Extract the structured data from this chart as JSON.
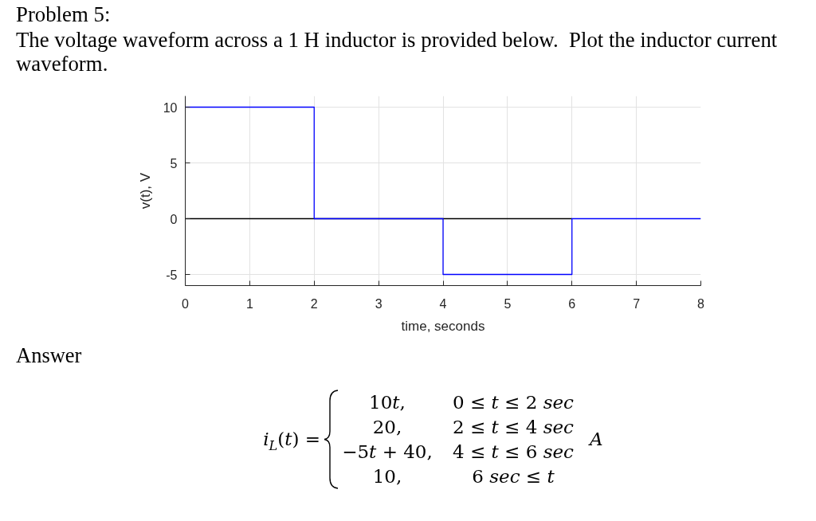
{
  "chart_data": {
    "type": "step",
    "title": "Problem 5:",
    "subtitle": "The voltage waveform across a 1 H inductor is provided below.  Plot the inductor current waveform.",
    "xlabel": "time, seconds",
    "ylabel": "v(t), V",
    "annotations": [
      "Answer",
      "i$_{L}$(t) =",
      "10t,",
      "0 ≤ t ≤ 2 sec",
      "20,",
      "2 ≤ t ≤ 4 sec",
      "−5t + 40,",
      "4 ≤ t ≤ 6 sec",
      "10,",
      "6 sec ≤ t",
      "A"
    ],
    "xlim": [
      0,
      8
    ],
    "ylim": [
      -6,
      11
    ],
    "xticks": [
      0,
      1,
      2,
      3,
      4,
      5,
      6,
      7,
      8
    ],
    "yticks": [
      -5,
      0,
      5,
      10
    ],
    "grid": true,
    "series": [
      {
        "type": "line",
        "color": "#000000",
        "x": [
          0,
          6
        ],
        "values": [
          0,
          0
        ]
      },
      {
        "color": "#0000ff",
        "x": [
          0,
          2,
          4,
          6,
          8
        ],
        "values": [
          10,
          0,
          -5,
          0,
          0
        ]
      }
    ]
  }
}
